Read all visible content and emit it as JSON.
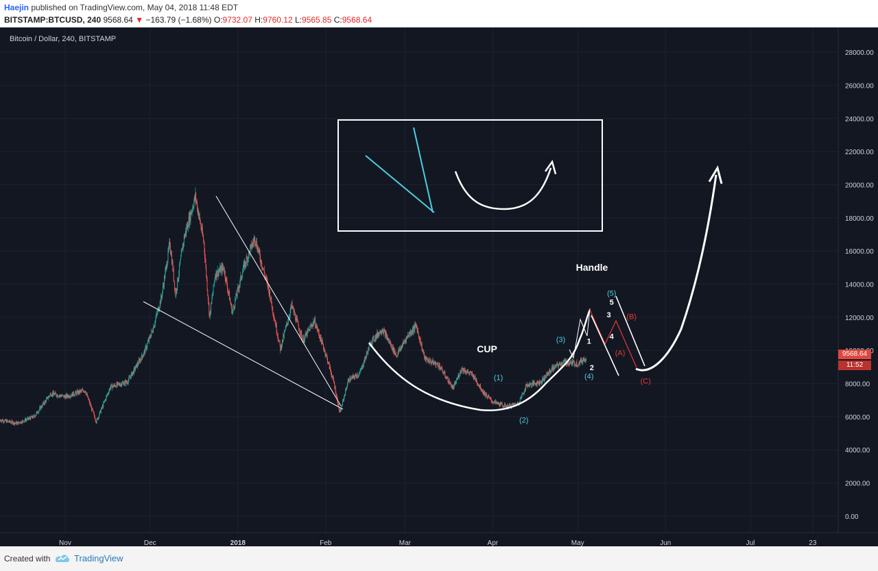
{
  "header": {
    "author": "Haejin",
    "published_text": "published on TradingView.com, May 04, 2018 11:48 EDT",
    "symbol": "BITSTAMP:BTCUSD, 240",
    "price": "9568.64",
    "change": "−163.79 (−1.68%)",
    "o_label": "O:",
    "o_value": "9732.07",
    "h_label": "H:",
    "h_value": "9760.12",
    "l_label": "L:",
    "l_value": "9565.85",
    "c_label": "C:",
    "c_value": "9568.64"
  },
  "footer": {
    "created_with": "Created with",
    "brand": "TradingView"
  },
  "colors": {
    "background": "#131722",
    "up": "#26a69a",
    "down": "#ef5350",
    "annotation": "#ffffff",
    "wave": "#4dd0e1",
    "correction": "#e53935"
  },
  "chart_data": {
    "type": "candlestick",
    "title": "Bitcoin / Dollar, 240, BITSTAMP",
    "current_price_label": "9568.64",
    "countdown_label": "11:52",
    "yaxis": {
      "ticks": [
        "28000.00",
        "26000.00",
        "24000.00",
        "22000.00",
        "20000.00",
        "18000.00",
        "16000.00",
        "14000.00",
        "12000.00",
        "10000.00",
        "8000.00",
        "6000.00",
        "4000.00",
        "2000.00",
        "0.00"
      ],
      "range": [
        -1000,
        29500
      ]
    },
    "xaxis": {
      "ticks": [
        "Nov",
        "Dec",
        "2018",
        "Feb",
        "Mar",
        "Apr",
        "May",
        "Jun",
        "Jul",
        "23"
      ],
      "range": [
        "2017-10-09",
        "2018-08-01"
      ]
    },
    "price_path": [
      [
        "2017-10-09",
        5800
      ],
      [
        "2017-10-15",
        5600
      ],
      [
        "2017-10-21",
        6000
      ],
      [
        "2017-10-27",
        7400
      ],
      [
        "2017-11-01",
        7200
      ],
      [
        "2017-11-08",
        7600
      ],
      [
        "2017-11-12",
        5700
      ],
      [
        "2017-11-17",
        7800
      ],
      [
        "2017-11-23",
        8100
      ],
      [
        "2017-11-29",
        9900
      ],
      [
        "2017-12-02",
        11300
      ],
      [
        "2017-12-05",
        13200
      ],
      [
        "2017-12-08",
        16500
      ],
      [
        "2017-12-10",
        13400
      ],
      [
        "2017-12-13",
        16800
      ],
      [
        "2017-12-17",
        19300
      ],
      [
        "2017-12-20",
        16500
      ],
      [
        "2017-12-22",
        12000
      ],
      [
        "2017-12-24",
        14600
      ],
      [
        "2017-12-27",
        15000
      ],
      [
        "2017-12-30",
        12300
      ],
      [
        "2018-01-03",
        15000
      ],
      [
        "2018-01-07",
        16800
      ],
      [
        "2018-01-12",
        13600
      ],
      [
        "2018-01-16",
        10100
      ],
      [
        "2018-01-20",
        12700
      ],
      [
        "2018-01-24",
        10600
      ],
      [
        "2018-01-28",
        11800
      ],
      [
        "2018-02-01",
        9800
      ],
      [
        "2018-02-04",
        8000
      ],
      [
        "2018-02-06",
        6200
      ],
      [
        "2018-02-09",
        8200
      ],
      [
        "2018-02-13",
        8600
      ],
      [
        "2018-02-17",
        10500
      ],
      [
        "2018-02-21",
        11300
      ],
      [
        "2018-02-26",
        9700
      ],
      [
        "2018-03-02",
        10900
      ],
      [
        "2018-03-05",
        11500
      ],
      [
        "2018-03-08",
        9500
      ],
      [
        "2018-03-13",
        9100
      ],
      [
        "2018-03-18",
        7700
      ],
      [
        "2018-03-21",
        8900
      ],
      [
        "2018-03-25",
        8500
      ],
      [
        "2018-03-29",
        7400
      ],
      [
        "2018-04-01",
        6900
      ],
      [
        "2018-04-06",
        6600
      ],
      [
        "2018-04-10",
        6800
      ],
      [
        "2018-04-13",
        7900
      ],
      [
        "2018-04-18",
        8100
      ],
      [
        "2018-04-22",
        8900
      ],
      [
        "2018-04-26",
        9300
      ],
      [
        "2018-05-01",
        9200
      ],
      [
        "2018-05-04",
        9568
      ]
    ],
    "annotations": {
      "cup_label": "CUP",
      "handle_label": "Handle",
      "cyan_waves": [
        {
          "label": "(1)",
          "date": "2018-04-03",
          "price": 8200
        },
        {
          "label": "(2)",
          "date": "2018-04-12",
          "price": 5650
        },
        {
          "label": "(3)",
          "date": "2018-04-25",
          "price": 10500
        },
        {
          "label": "(4)",
          "date": "2018-05-05",
          "price": 8300
        },
        {
          "label": "(5)",
          "date": "2018-05-13",
          "price": 13300
        }
      ],
      "white_waves": [
        {
          "label": "1",
          "date": "2018-05-05",
          "price": 10400
        },
        {
          "label": "2",
          "date": "2018-05-06",
          "price": 8800
        },
        {
          "label": "3",
          "date": "2018-05-12",
          "price": 12000
        },
        {
          "label": "4",
          "date": "2018-05-13",
          "price": 10700
        },
        {
          "label": "5",
          "date": "2018-05-13",
          "price": 12750
        }
      ],
      "red_waves": [
        {
          "label": "(A)",
          "date": "2018-05-16",
          "price": 9700
        },
        {
          "label": "(B)",
          "date": "2018-05-20",
          "price": 11900
        },
        {
          "label": "(C)",
          "date": "2018-05-25",
          "price": 8000
        }
      ]
    }
  }
}
